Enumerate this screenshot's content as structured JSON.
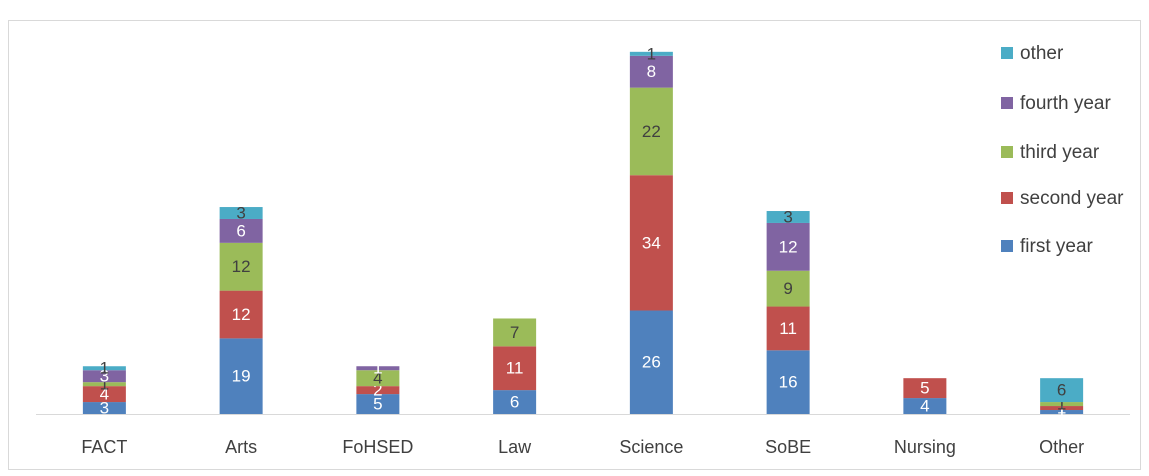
{
  "chart_data": {
    "type": "stacked_bar",
    "categories": [
      "FACT",
      "Arts",
      "FoHSED",
      "Law",
      "Science",
      "SoBE",
      "Nursing",
      "Other"
    ],
    "series": [
      {
        "name": "first year",
        "color": "#4f81bd",
        "values": [
          3,
          19,
          5,
          6,
          26,
          16,
          4,
          1
        ]
      },
      {
        "name": "second year",
        "color": "#c0504d",
        "values": [
          4,
          12,
          2,
          11,
          34,
          11,
          5,
          1
        ]
      },
      {
        "name": "third year",
        "color": "#9bbb59",
        "values": [
          1,
          12,
          4,
          7,
          22,
          9,
          null,
          1
        ]
      },
      {
        "name": "fourth year",
        "color": "#8064a2",
        "values": [
          3,
          6,
          1,
          null,
          8,
          12,
          null,
          null
        ]
      },
      {
        "name": "other",
        "color": "#4bacc6",
        "values": [
          1,
          3,
          null,
          null,
          1,
          3,
          null,
          6
        ]
      }
    ],
    "ylim": [
      0,
      100
    ],
    "grid": false,
    "legend": "right"
  }
}
